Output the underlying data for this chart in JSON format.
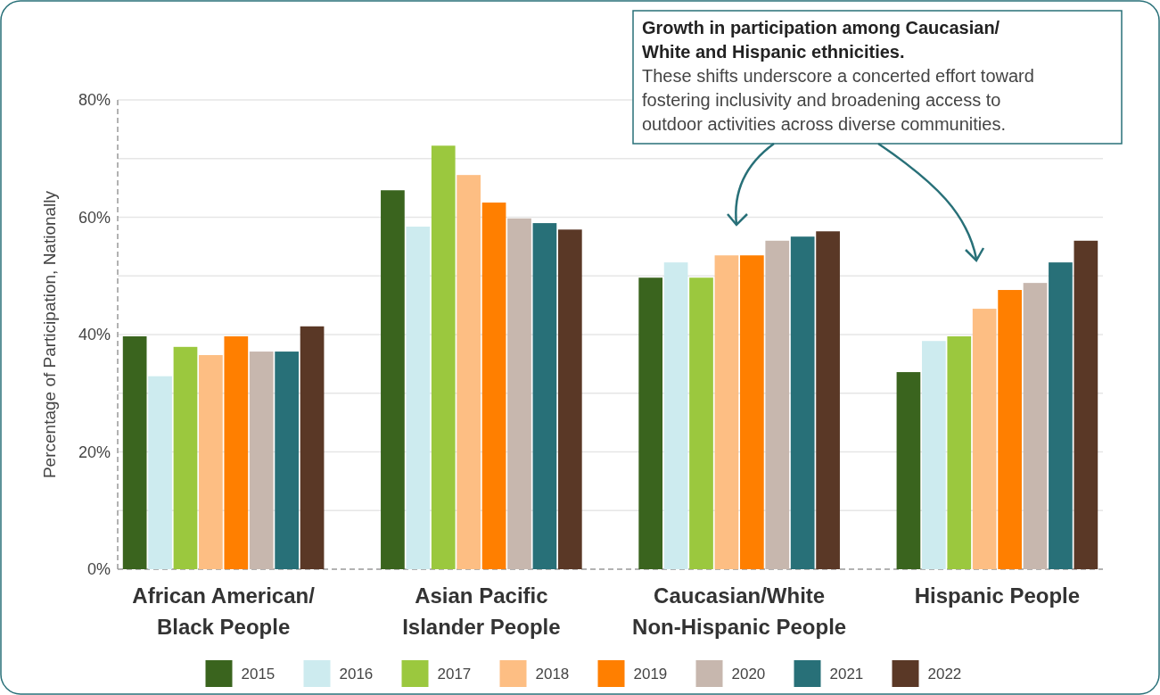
{
  "chart_data": {
    "type": "bar",
    "ylabel": "Percentage of Participation, Nationally",
    "categories": [
      "African American/ Black People",
      "Asian Pacific Islander People",
      "Caucasian/White Non-Hispanic People",
      "Hispanic People"
    ],
    "series": [
      {
        "name": "2015",
        "color": "#3a641e",
        "values": [
          39.7,
          64.6,
          49.7,
          33.6
        ]
      },
      {
        "name": "2016",
        "color": "#cdebef",
        "values": [
          32.9,
          58.4,
          52.3,
          38.9
        ]
      },
      {
        "name": "2017",
        "color": "#9bc83e",
        "values": [
          37.9,
          72.2,
          49.7,
          39.7
        ]
      },
      {
        "name": "2018",
        "color": "#fdbe83",
        "values": [
          36.5,
          67.2,
          53.5,
          44.4
        ]
      },
      {
        "name": "2019",
        "color": "#ff7f00",
        "values": [
          39.7,
          62.5,
          53.5,
          47.6
        ]
      },
      {
        "name": "2020",
        "color": "#c7b7ae",
        "values": [
          37.1,
          59.8,
          56.0,
          48.8
        ]
      },
      {
        "name": "2021",
        "color": "#287078",
        "values": [
          37.1,
          59.0,
          56.7,
          52.3
        ]
      },
      {
        "name": "2022",
        "color": "#5a3826",
        "values": [
          41.4,
          57.9,
          57.6,
          56.0
        ]
      }
    ],
    "ylim": [
      0,
      80
    ],
    "yticks": [
      {
        "value": 0,
        "label": "0%"
      },
      {
        "value": 10,
        "label": null
      },
      {
        "value": 20,
        "label": "20%"
      },
      {
        "value": 30,
        "label": null
      },
      {
        "value": 40,
        "label": "40%"
      },
      {
        "value": 50,
        "label": null
      },
      {
        "value": 60,
        "label": "60%"
      },
      {
        "value": 70,
        "label": null
      },
      {
        "value": 80,
        "label": "80%"
      }
    ],
    "grid": "y",
    "legend": "bottom",
    "annotations": [
      "Growth in participation among Caucasian/ White and Hispanic ethnicities.",
      "These shifts underscore a concerted effort toward fostering inclusivity and broadening access to outdoor activities across diverse communities."
    ]
  }
}
